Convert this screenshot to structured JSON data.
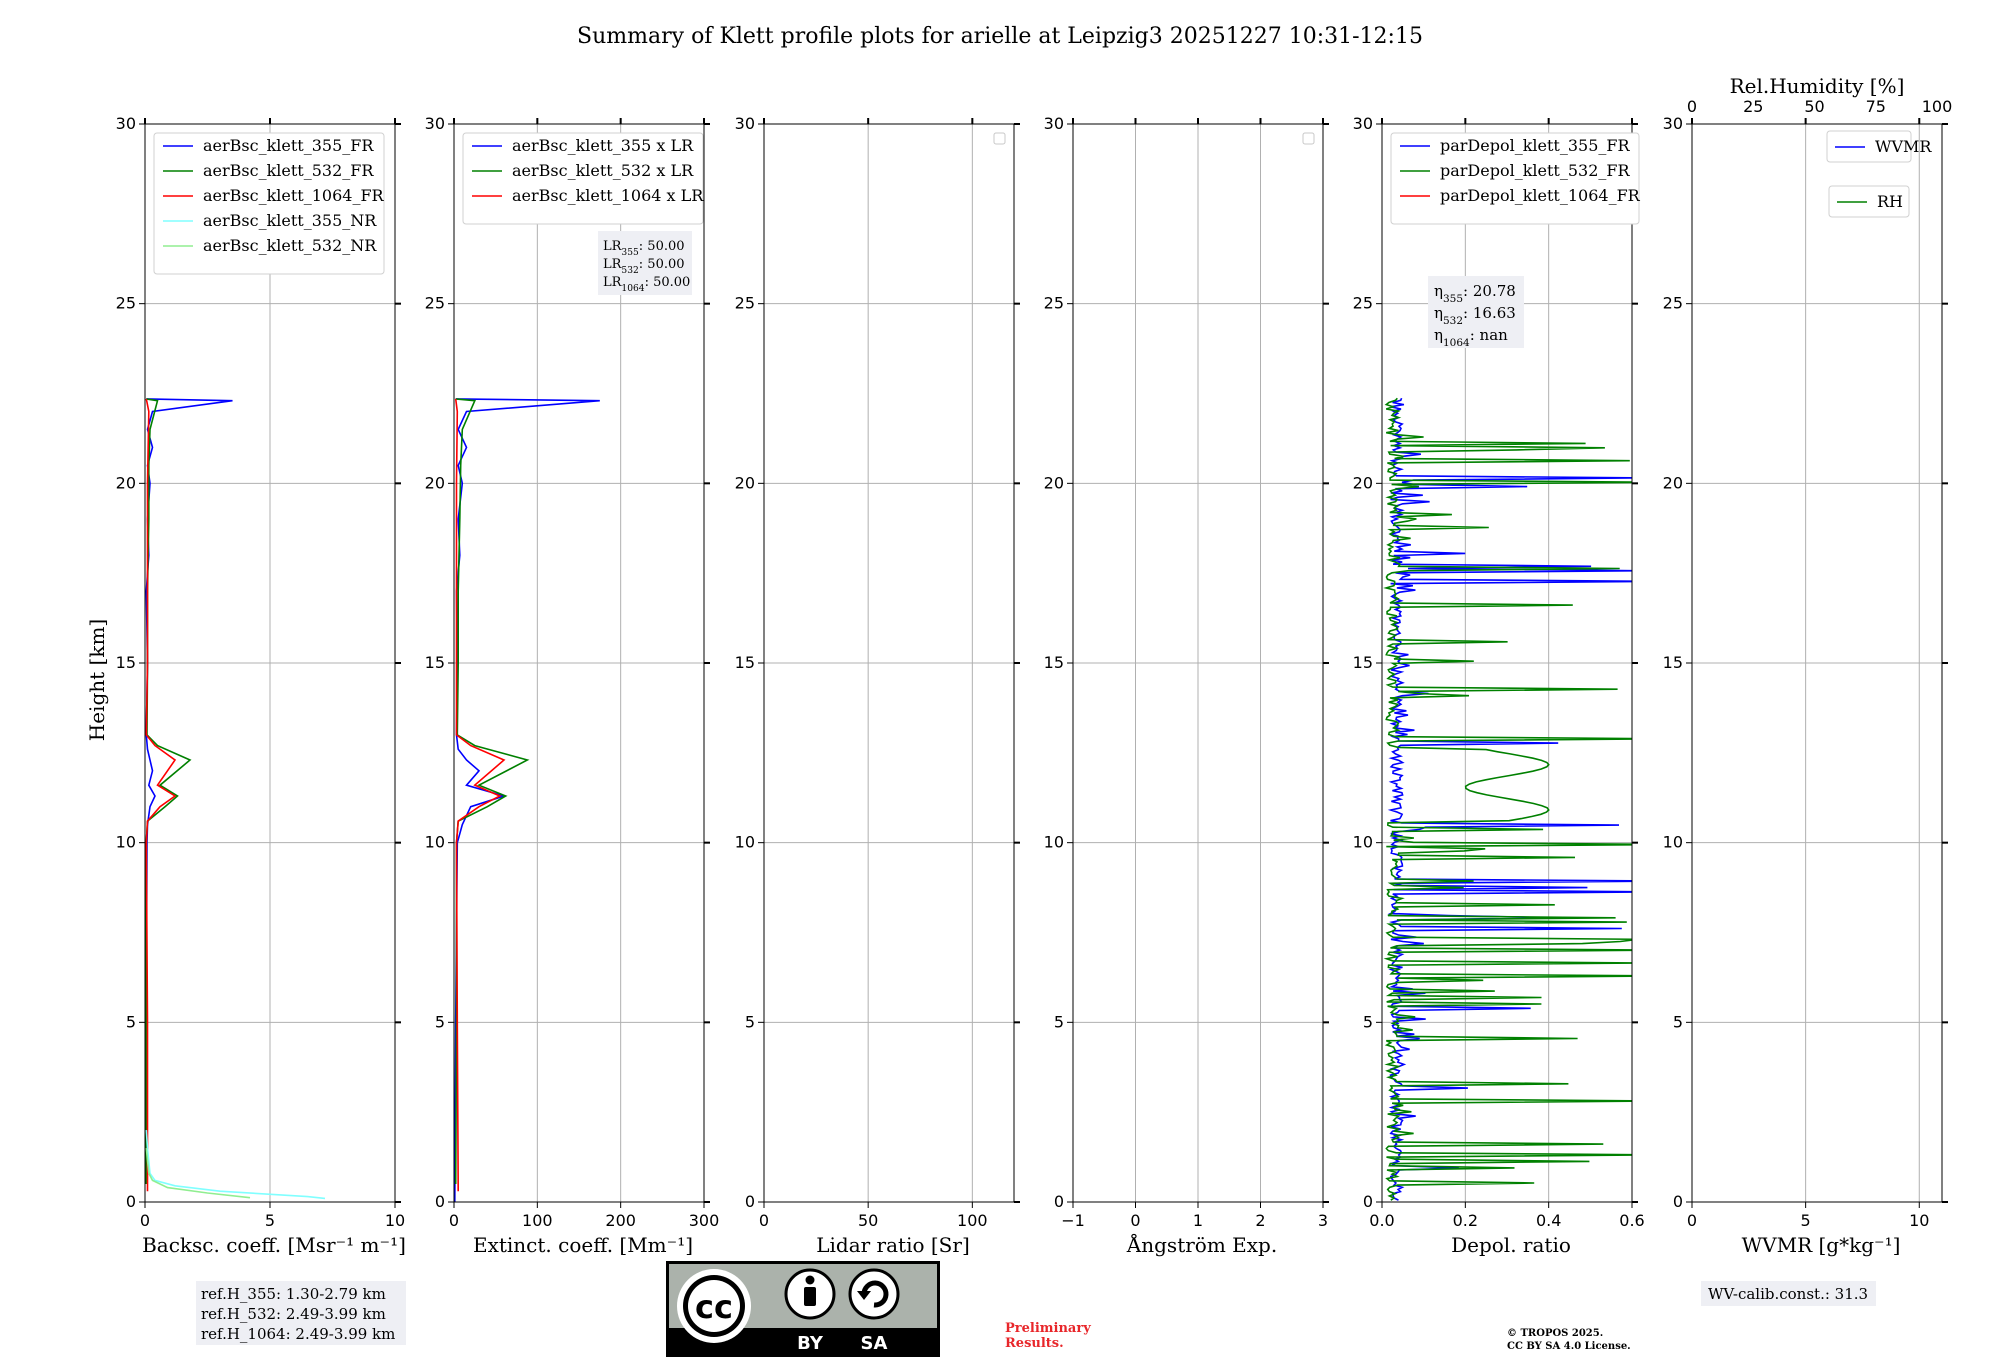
{
  "title": "Summary of Klett profile plots for arielle at Leipzig3 20251227 10:31-12:15",
  "ylabel": "Height [km]",
  "notes": {
    "refH": [
      "ref.H_355: 1.30-2.79 km",
      "ref.H_532: 2.49-3.99 km",
      "ref.H_1064: 2.49-3.99 km"
    ],
    "wv_calib": "WV-calib.const.: 31.3",
    "preliminary": [
      "Preliminary",
      "Results."
    ],
    "copyright": [
      "© TROPOS 2025.",
      "CC BY SA 4.0 License."
    ],
    "cc_labels": [
      "cc",
      "BY",
      "SA"
    ]
  },
  "colors": {
    "b355": "#0000ff",
    "g532": "#008000",
    "r1064": "#ff0000",
    "c355nr": "#80ffff",
    "lg532nr": "#90ee90",
    "preliminary": "#e8262a"
  },
  "chart_data": [
    {
      "type": "line",
      "xlabel": "Backsc. coeff. [Msr⁻¹ m⁻¹]",
      "ylabel": "Height [km]",
      "xlim": [
        0,
        10
      ],
      "ylim": [
        0,
        30
      ],
      "xticks": [
        0,
        5,
        10
      ],
      "yticks": [
        0,
        5,
        10,
        15,
        20,
        25,
        30
      ],
      "legend": "top-left",
      "series": [
        {
          "name": "aerBsc_klett_355_FR",
          "color": "#0000ff",
          "points": [
            [
              0.05,
              0.5
            ],
            [
              0.05,
              5
            ],
            [
              0.08,
              10
            ],
            [
              0.1,
              10.5
            ],
            [
              0.2,
              11
            ],
            [
              0.4,
              11.3
            ],
            [
              0.15,
              11.6
            ],
            [
              0.3,
              12
            ],
            [
              0.2,
              12.3
            ],
            [
              0.1,
              12.6
            ],
            [
              0.05,
              13
            ],
            [
              0.1,
              15
            ],
            [
              0.05,
              17
            ],
            [
              0.15,
              18
            ],
            [
              0.1,
              19
            ],
            [
              0.2,
              20
            ],
            [
              0.1,
              20.5
            ],
            [
              0.3,
              21
            ],
            [
              0.1,
              21.5
            ],
            [
              0.3,
              22
            ],
            [
              3.5,
              22.3
            ],
            [
              0.05,
              22.35
            ]
          ]
        },
        {
          "name": "aerBsc_klett_532_FR",
          "color": "#008000",
          "points": [
            [
              0.05,
              0.5
            ],
            [
              0.05,
              5
            ],
            [
              0.05,
              10
            ],
            [
              0.1,
              10.6
            ],
            [
              0.8,
              11
            ],
            [
              1.3,
              11.3
            ],
            [
              0.6,
              11.6
            ],
            [
              1.8,
              12.3
            ],
            [
              0.5,
              12.7
            ],
            [
              0.08,
              13
            ],
            [
              0.1,
              15
            ],
            [
              0.1,
              17
            ],
            [
              0.15,
              19
            ],
            [
              0.15,
              20.5
            ],
            [
              0.2,
              21.5
            ],
            [
              0.5,
              22.3
            ],
            [
              0.05,
              22.35
            ]
          ]
        },
        {
          "name": "aerBsc_klett_1064_FR",
          "color": "#ff0000",
          "points": [
            [
              0.1,
              0.3
            ],
            [
              0.1,
              5
            ],
            [
              0.05,
              10
            ],
            [
              0.1,
              10.6
            ],
            [
              0.6,
              11
            ],
            [
              1.2,
              11.3
            ],
            [
              0.5,
              11.6
            ],
            [
              1.2,
              12.3
            ],
            [
              0.4,
              12.7
            ],
            [
              0.05,
              13
            ],
            [
              0.1,
              15
            ],
            [
              0.1,
              18
            ],
            [
              0.1,
              20
            ],
            [
              0.15,
              22
            ],
            [
              0.05,
              22.35
            ]
          ]
        },
        {
          "name": "aerBsc_klett_355_NR",
          "color": "#80ffff",
          "points": [
            [
              7.2,
              0.1
            ],
            [
              6.5,
              0.15
            ],
            [
              3,
              0.3
            ],
            [
              1.2,
              0.45
            ],
            [
              0.4,
              0.6
            ],
            [
              0.2,
              0.8
            ],
            [
              0.1,
              1.5
            ],
            [
              0.05,
              2
            ]
          ]
        },
        {
          "name": "aerBsc_klett_532_NR",
          "color": "#90ee90",
          "points": [
            [
              4.2,
              0.12
            ],
            [
              2.5,
              0.25
            ],
            [
              0.9,
              0.4
            ],
            [
              0.3,
              0.6
            ],
            [
              0.15,
              0.8
            ],
            [
              0.05,
              1.5
            ]
          ]
        }
      ]
    },
    {
      "type": "line",
      "xlabel": "Extinct. coeff. [Mm⁻¹]",
      "xlim": [
        0,
        300
      ],
      "ylim": [
        0,
        30
      ],
      "xticks": [
        0,
        100,
        200,
        300
      ],
      "yticks": [
        0,
        5,
        10,
        15,
        20,
        25,
        30
      ],
      "legend": "top-left",
      "annotation": [
        "LR355: 50.00",
        "LR532: 50.00",
        "LR1064: 50.00"
      ],
      "series": [
        {
          "name": "aerBsc_klett_355 x LR",
          "color": "#0000ff",
          "points": [
            [
              1,
              0
            ],
            [
              2,
              5
            ],
            [
              4,
              10
            ],
            [
              10,
              10.5
            ],
            [
              20,
              11
            ],
            [
              60,
              11.3
            ],
            [
              15,
              11.6
            ],
            [
              30,
              12
            ],
            [
              15,
              12.3
            ],
            [
              5,
              12.6
            ],
            [
              3,
              13
            ],
            [
              4,
              15
            ],
            [
              3,
              17
            ],
            [
              7,
              18
            ],
            [
              5,
              19
            ],
            [
              10,
              20
            ],
            [
              5,
              20.5
            ],
            [
              15,
              21
            ],
            [
              5,
              21.5
            ],
            [
              15,
              22
            ],
            [
              175,
              22.3
            ],
            [
              2,
              22.35
            ]
          ]
        },
        {
          "name": "aerBsc_klett_532 x LR",
          "color": "#008000",
          "points": [
            [
              2,
              0.5
            ],
            [
              3,
              5
            ],
            [
              3,
              10
            ],
            [
              5,
              10.6
            ],
            [
              40,
              11
            ],
            [
              62,
              11.3
            ],
            [
              30,
              11.6
            ],
            [
              88,
              12.3
            ],
            [
              25,
              12.7
            ],
            [
              4,
              13
            ],
            [
              5,
              15
            ],
            [
              5,
              17
            ],
            [
              7,
              19
            ],
            [
              8,
              20.5
            ],
            [
              10,
              21.5
            ],
            [
              25,
              22.3
            ],
            [
              2,
              22.35
            ]
          ]
        },
        {
          "name": "aerBsc_klett_1064 x LR",
          "color": "#ff0000",
          "points": [
            [
              5,
              0.3
            ],
            [
              4,
              5
            ],
            [
              3,
              10
            ],
            [
              5,
              10.6
            ],
            [
              30,
              11
            ],
            [
              55,
              11.3
            ],
            [
              25,
              11.6
            ],
            [
              60,
              12.3
            ],
            [
              20,
              12.7
            ],
            [
              3,
              13
            ],
            [
              3,
              15
            ],
            [
              3,
              18
            ],
            [
              3,
              20
            ],
            [
              4,
              22
            ],
            [
              2,
              22.35
            ]
          ]
        }
      ]
    },
    {
      "type": "line",
      "xlabel": "Lidar ratio [Sr]",
      "xlim": [
        0,
        120
      ],
      "ylim": [
        0,
        30
      ],
      "xticks": [
        0,
        50,
        100
      ],
      "yticks": [
        0,
        5,
        10,
        15,
        20,
        25,
        30
      ],
      "legend": "top-right (empty)",
      "series": []
    },
    {
      "type": "line",
      "xlabel": "Ångström Exp.",
      "xlim": [
        -1,
        3
      ],
      "ylim": [
        0,
        30
      ],
      "xticks": [
        -1,
        0,
        1,
        2,
        3
      ],
      "yticks": [
        0,
        5,
        10,
        15,
        20,
        25,
        30
      ],
      "legend": "top-right (empty)",
      "series": []
    },
    {
      "type": "line",
      "xlabel": "Depol. ratio",
      "xlim": [
        0,
        0.6
      ],
      "ylim": [
        0,
        30
      ],
      "xticks": [
        0.0,
        0.2,
        0.4,
        0.6
      ],
      "yticks": [
        0,
        5,
        10,
        15,
        20,
        25,
        30
      ],
      "legend": "top-left",
      "annotation": [
        "η355: 20.78",
        "η532: 16.63",
        "η1064: nan"
      ],
      "series": [
        {
          "name": "parDepol_klett_355_FR",
          "color": "#0000ff"
        },
        {
          "name": "parDepol_klett_532_FR",
          "color": "#008000"
        },
        {
          "name": "parDepol_klett_1064_FR",
          "color": "#ff0000"
        }
      ]
    },
    {
      "type": "line",
      "xlabel": "WVMR [g*kg⁻¹]",
      "x2label": "Rel.Humidity [%]",
      "xlim": [
        0,
        11
      ],
      "x2lim": [
        0,
        100
      ],
      "ylim": [
        0,
        30
      ],
      "xticks": [
        0,
        5,
        10
      ],
      "x2ticks": [
        0,
        25,
        50,
        75,
        100
      ],
      "yticks": [
        0,
        5,
        10,
        15,
        20,
        25,
        30
      ],
      "legend": "top-right",
      "series": [
        {
          "name": "WVMR",
          "color": "#0000ff",
          "values": []
        },
        {
          "name": "RH",
          "color": "#008000",
          "values": []
        }
      ]
    }
  ]
}
